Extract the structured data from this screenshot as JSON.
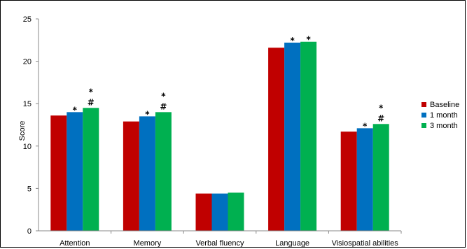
{
  "chart_data": {
    "type": "bar",
    "title": "",
    "xlabel": "",
    "ylabel": "Score",
    "ylim": [
      0,
      25
    ],
    "yticks": [
      0,
      5,
      10,
      15,
      20,
      25
    ],
    "grid": false,
    "legend_position": "right",
    "categories": [
      "Attention",
      "Memory",
      "Verbal fluency",
      "Language",
      "Visiospatial abilities"
    ],
    "series": [
      {
        "name": "Baseline",
        "color": "#c00000",
        "values": [
          13.6,
          12.9,
          4.4,
          21.6,
          11.7
        ]
      },
      {
        "name": "1 month",
        "color": "#0070c0",
        "values": [
          14.0,
          13.5,
          4.4,
          22.2,
          12.1
        ]
      },
      {
        "name": "3 month",
        "color": "#00b050",
        "values": [
          14.5,
          14.0,
          4.5,
          22.3,
          12.6
        ]
      }
    ],
    "annotations": [
      {
        "category": 0,
        "series": 1,
        "text": "*"
      },
      {
        "category": 0,
        "series": 2,
        "text": "#"
      },
      {
        "category": 0,
        "series": 2,
        "text": "*",
        "level": 2
      },
      {
        "category": 1,
        "series": 1,
        "text": "*"
      },
      {
        "category": 1,
        "series": 2,
        "text": "#"
      },
      {
        "category": 1,
        "series": 2,
        "text": "*",
        "level": 2
      },
      {
        "category": 3,
        "series": 1,
        "text": "*"
      },
      {
        "category": 3,
        "series": 2,
        "text": "*"
      },
      {
        "category": 4,
        "series": 1,
        "text": "*"
      },
      {
        "category": 4,
        "series": 2,
        "text": "#"
      },
      {
        "category": 4,
        "series": 2,
        "text": "*",
        "level": 2
      }
    ]
  }
}
